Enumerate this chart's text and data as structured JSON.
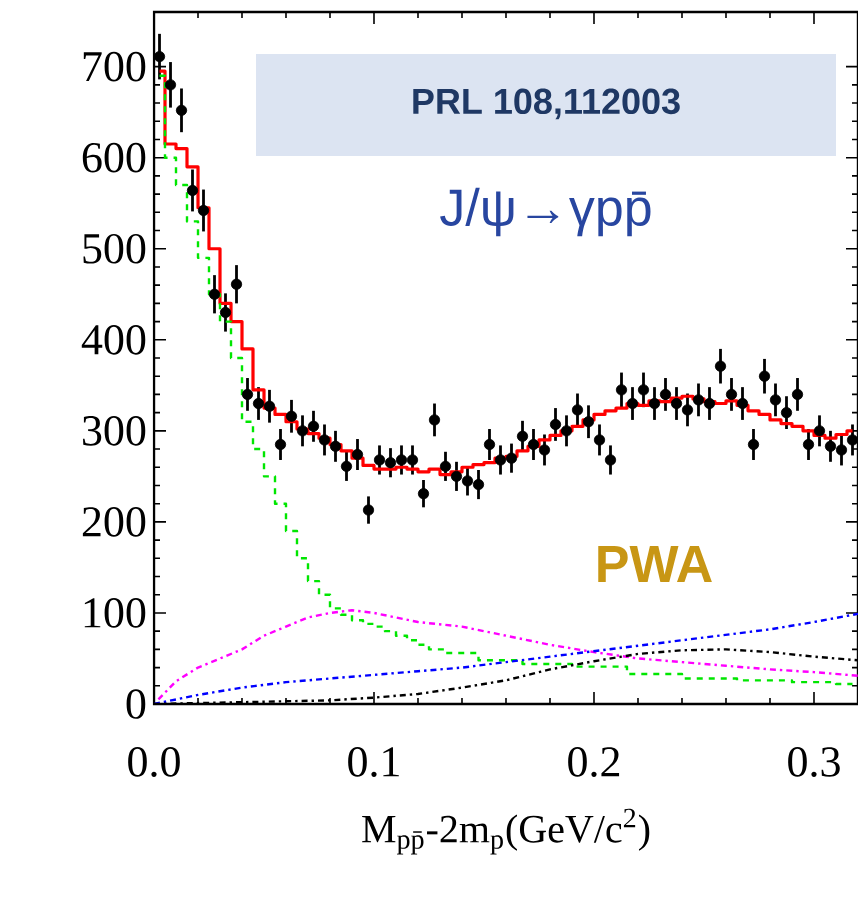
{
  "chart_data": {
    "type": "scatter",
    "xlabel": "M$_{pp̄}$-2m$_{p}$(GeV/c$^{2}$)",
    "annotations": [
      "PRL 108,112003",
      "J/ψ→γpp̄",
      "PWA"
    ],
    "xlim": [
      0,
      0.32
    ],
    "ylim": [
      0,
      760
    ],
    "xticks": [
      {
        "value": 0,
        "label": "0.0"
      },
      0.1,
      0.2,
      0.3
    ],
    "yticks": [
      0,
      100,
      200,
      300,
      400,
      500,
      600,
      700
    ],
    "series": [
      {
        "color": "#000000",
        "marker": "circle",
        "x": [
          0.0025,
          0.0075,
          0.0125,
          0.0175,
          0.0225,
          0.0275,
          0.0325,
          0.0375,
          0.0425,
          0.0475,
          0.0525,
          0.0575,
          0.0625,
          0.0675,
          0.0725,
          0.0775,
          0.0825,
          0.0875,
          0.0925,
          0.0975,
          0.1025,
          0.1075,
          0.1125,
          0.1175,
          0.1225,
          0.1275,
          0.1325,
          0.1375,
          0.1425,
          0.1475,
          0.1525,
          0.1575,
          0.1625,
          0.1675,
          0.1725,
          0.1775,
          0.1825,
          0.1875,
          0.1925,
          0.1975,
          0.2025,
          0.2075,
          0.2125,
          0.2175,
          0.2225,
          0.2275,
          0.2325,
          0.2375,
          0.2425,
          0.2475,
          0.2525,
          0.2575,
          0.2625,
          0.2675,
          0.2725,
          0.2775,
          0.2825,
          0.2875,
          0.2925,
          0.2975,
          0.3025,
          0.3075,
          0.3125,
          0.3175
        ],
        "values": [
          711,
          680,
          652,
          564,
          542,
          450,
          430,
          461,
          340,
          330,
          327,
          285,
          316,
          300,
          305,
          290,
          283,
          261,
          274,
          213,
          268,
          265,
          268,
          268,
          231,
          312,
          261,
          250,
          245,
          241,
          285,
          268,
          270,
          294,
          285,
          279,
          307,
          300,
          323,
          310,
          290,
          268,
          345,
          330,
          345,
          330,
          340,
          330,
          323,
          334,
          330,
          371,
          340,
          330,
          285,
          360,
          334,
          320,
          340,
          285,
          300,
          283,
          279,
          290
        ],
        "errors": [
          25,
          25,
          24,
          23,
          23,
          21,
          21,
          21,
          18,
          18,
          18,
          17,
          18,
          17,
          17,
          17,
          17,
          16,
          17,
          15,
          16,
          16,
          16,
          16,
          15,
          18,
          16,
          16,
          16,
          16,
          17,
          16,
          16,
          17,
          17,
          17,
          18,
          17,
          18,
          18,
          17,
          16,
          19,
          18,
          19,
          18,
          18,
          18,
          18,
          18,
          18,
          19,
          18,
          18,
          17,
          19,
          18,
          18,
          18,
          17,
          17,
          17,
          17,
          17
        ]
      },
      {
        "type": "step",
        "color": "#ff0000",
        "line_style": "solid",
        "marker": "none",
        "x": [
          0.0025,
          0.0075,
          0.0125,
          0.0175,
          0.0225,
          0.0275,
          0.0325,
          0.0375,
          0.0425,
          0.0475,
          0.0525,
          0.0575,
          0.0625,
          0.0675,
          0.0725,
          0.0775,
          0.0825,
          0.0875,
          0.0925,
          0.0975,
          0.1025,
          0.1075,
          0.1125,
          0.1175,
          0.1225,
          0.1275,
          0.1325,
          0.1375,
          0.1425,
          0.1475,
          0.1525,
          0.1575,
          0.1625,
          0.1675,
          0.1725,
          0.1775,
          0.1825,
          0.1875,
          0.1925,
          0.1975,
          0.2025,
          0.2075,
          0.2125,
          0.2175,
          0.2225,
          0.2275,
          0.2325,
          0.2375,
          0.2425,
          0.2475,
          0.2525,
          0.2575,
          0.2625,
          0.2675,
          0.2725,
          0.2775,
          0.2825,
          0.2875,
          0.2925,
          0.2975,
          0.3025,
          0.3075,
          0.3125,
          0.3175
        ],
        "values": [
          695,
          615,
          610,
          590,
          545,
          500,
          440,
          420,
          390,
          345,
          325,
          318,
          310,
          302,
          297,
          292,
          285,
          278,
          270,
          262,
          258,
          258,
          260,
          258,
          255,
          258,
          252,
          255,
          260,
          263,
          265,
          270,
          272,
          278,
          283,
          290,
          295,
          300,
          305,
          312,
          318,
          322,
          325,
          330,
          328,
          333,
          332,
          336,
          338,
          335,
          332,
          330,
          333,
          328,
          322,
          318,
          312,
          308,
          305,
          300,
          295,
          292,
          296,
          300
        ]
      },
      {
        "type": "step",
        "color": "#00e600",
        "line_style": "dashed",
        "marker": "none",
        "x": [
          0.0025,
          0.0075,
          0.0125,
          0.0175,
          0.0225,
          0.0275,
          0.0325,
          0.0375,
          0.0425,
          0.0475,
          0.0525,
          0.0575,
          0.0625,
          0.0675,
          0.0725,
          0.0775,
          0.0825,
          0.0875,
          0.0925,
          0.0975,
          0.1025,
          0.1075,
          0.1125,
          0.1175,
          0.1225,
          0.1275,
          0.1375,
          0.1575,
          0.1775,
          0.2025,
          0.2275,
          0.2525,
          0.2775,
          0.3025,
          0.3175
        ],
        "values": [
          690,
          600,
          570,
          530,
          490,
          450,
          420,
          380,
          310,
          280,
          250,
          220,
          190,
          160,
          135,
          120,
          105,
          98,
          92,
          88,
          85,
          80,
          75,
          70,
          65,
          60,
          56,
          48,
          44,
          41,
          33,
          28,
          26,
          24,
          22
        ]
      },
      {
        "type": "line",
        "color": "#ff00ff",
        "line_style": "dotted",
        "marker": "none",
        "x": [
          0.002,
          0.01,
          0.02,
          0.03,
          0.04,
          0.05,
          0.06,
          0.07,
          0.08,
          0.09,
          0.1,
          0.11,
          0.12,
          0.14,
          0.16,
          0.18,
          0.2,
          0.22,
          0.24,
          0.26,
          0.28,
          0.3,
          0.32
        ],
        "values": [
          5,
          25,
          40,
          50,
          60,
          75,
          85,
          95,
          100,
          103,
          100,
          95,
          90,
          85,
          75,
          65,
          57,
          50,
          46,
          42,
          38,
          35,
          31
        ]
      },
      {
        "type": "line",
        "color": "#0000ff",
        "line_style": "dotted",
        "marker": "none",
        "x": [
          0,
          0.02,
          0.04,
          0.06,
          0.08,
          0.1,
          0.12,
          0.14,
          0.16,
          0.18,
          0.2,
          0.22,
          0.24,
          0.26,
          0.28,
          0.3,
          0.32
        ],
        "values": [
          0,
          10,
          18,
          24,
          28,
          32,
          36,
          40,
          46,
          52,
          58,
          64,
          70,
          76,
          82,
          90,
          99
        ]
      },
      {
        "type": "line",
        "color": "#000000",
        "line_style": "dotted",
        "marker": "none",
        "x": [
          0,
          0.04,
          0.08,
          0.1,
          0.12,
          0.14,
          0.16,
          0.18,
          0.2,
          0.22,
          0.24,
          0.26,
          0.28,
          0.3,
          0.32
        ],
        "values": [
          0,
          2,
          4,
          7,
          11,
          18,
          26,
          38,
          47,
          55,
          59,
          60,
          57,
          52,
          48
        ]
      }
    ]
  }
}
